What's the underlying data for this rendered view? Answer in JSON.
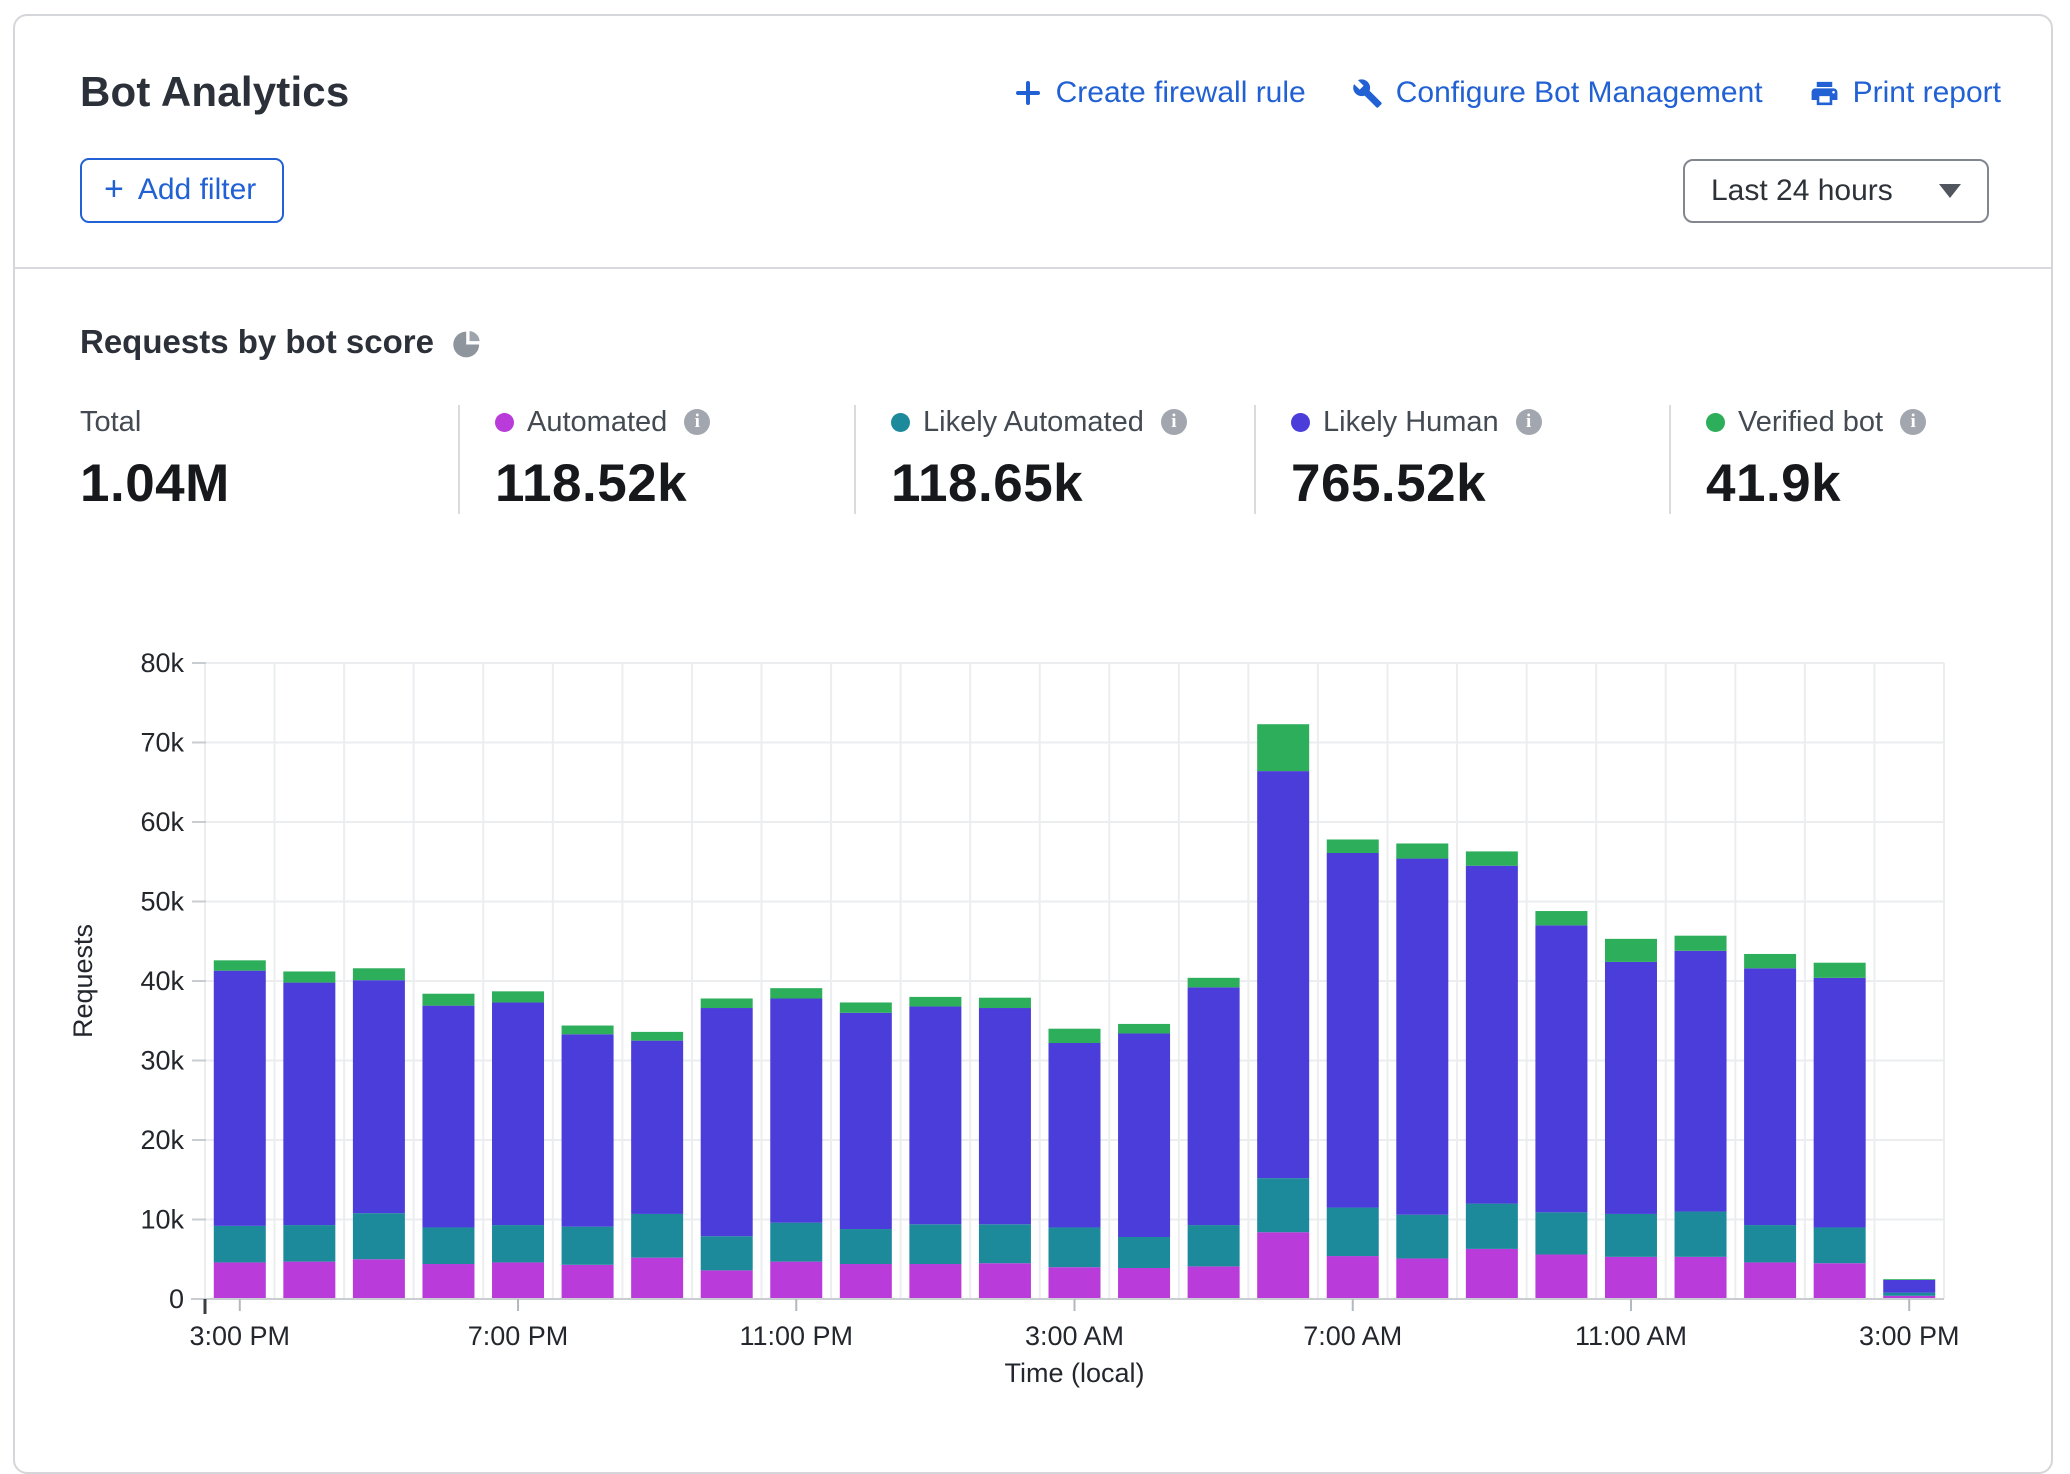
{
  "header": {
    "title": "Bot Analytics",
    "actions": [
      {
        "icon": "plus-icon",
        "label": "Create firewall rule"
      },
      {
        "icon": "wrench-icon",
        "label": "Configure Bot Management"
      },
      {
        "icon": "printer-icon",
        "label": "Print report"
      }
    ],
    "add_filter": {
      "plus": "+",
      "label": "Add filter"
    },
    "time_range_selected": "Last 24 hours"
  },
  "section": {
    "title": "Requests by bot score"
  },
  "icons": {
    "info_glyph": "i"
  },
  "stats": [
    {
      "label": "Total",
      "value": "1.04M",
      "color": null,
      "has_info": false
    },
    {
      "label": "Automated",
      "value": "118.52k",
      "color": "#b93cda",
      "has_info": true
    },
    {
      "label": "Likely Automated",
      "value": "118.65k",
      "color": "#1d8a9c",
      "has_info": true
    },
    {
      "label": "Likely Human",
      "value": "765.52k",
      "color": "#4a3dd9",
      "has_info": true
    },
    {
      "label": "Verified bot",
      "value": "41.9k",
      "color": "#2dae5b",
      "has_info": true
    }
  ],
  "chart_data": {
    "type": "bar",
    "stacked": true,
    "title": "Requests by bot score",
    "xlabel": "Time (local)",
    "ylabel": "Requests",
    "ylim": [
      0,
      80000
    ],
    "grid": true,
    "y_ticks": {
      "values": [
        0,
        10000,
        20000,
        30000,
        40000,
        50000,
        60000,
        70000,
        80000
      ],
      "labels": [
        "0",
        "10k",
        "20k",
        "30k",
        "40k",
        "50k",
        "60k",
        "70k",
        "80k"
      ]
    },
    "x": [
      "3:00 PM",
      "4:00 PM",
      "5:00 PM",
      "6:00 PM",
      "7:00 PM",
      "8:00 PM",
      "9:00 PM",
      "10:00 PM",
      "11:00 PM",
      "12:00 AM",
      "1:00 AM",
      "2:00 AM",
      "3:00 AM",
      "4:00 AM",
      "5:00 AM",
      "6:00 AM",
      "7:00 AM",
      "8:00 AM",
      "9:00 AM",
      "10:00 AM",
      "11:00 AM",
      "12:00 PM",
      "1:00 PM",
      "2:00 PM",
      "3:00 PM"
    ],
    "x_ticks": {
      "indices": [
        0,
        4,
        8,
        12,
        16,
        20,
        24
      ],
      "labels": [
        "3:00 PM",
        "7:00 PM",
        "11:00 PM",
        "3:00 AM",
        "7:00 AM",
        "11:00 AM",
        "3:00 PM"
      ]
    },
    "series": [
      {
        "name": "Automated",
        "color": "#b93cda",
        "values": [
          4600,
          4700,
          5000,
          4400,
          4600,
          4300,
          5200,
          3600,
          4700,
          4400,
          4400,
          4500,
          4000,
          3900,
          4100,
          8400,
          5400,
          5100,
          6300,
          5600,
          5300,
          5300,
          4600,
          4500,
          400
        ]
      },
      {
        "name": "Likely Automated",
        "color": "#1d8a9c",
        "values": [
          4600,
          4600,
          5800,
          4600,
          4700,
          4800,
          5500,
          4300,
          4900,
          4400,
          5000,
          4900,
          5000,
          3900,
          5200,
          6800,
          6100,
          5500,
          5700,
          5300,
          5400,
          5700,
          4700,
          4500,
          400
        ]
      },
      {
        "name": "Likely Human",
        "color": "#4a3dd9",
        "values": [
          32100,
          30500,
          29300,
          27900,
          28000,
          24200,
          21800,
          28700,
          28200,
          27200,
          27400,
          27200,
          23200,
          25600,
          29900,
          51200,
          44600,
          44800,
          42500,
          36100,
          31700,
          32800,
          32300,
          31400,
          1600
        ]
      },
      {
        "name": "Verified bot",
        "color": "#2dae5b",
        "values": [
          1300,
          1400,
          1500,
          1500,
          1400,
          1100,
          1100,
          1200,
          1300,
          1300,
          1200,
          1300,
          1800,
          1200,
          1200,
          5900,
          1700,
          1900,
          1800,
          1800,
          2900,
          1900,
          1800,
          1900,
          100
        ]
      }
    ],
    "totals_legend": {
      "total": "1.04M",
      "automated": "118.52k",
      "likely_automated": "118.65k",
      "likely_human": "765.52k",
      "verified_bot": "41.9k"
    }
  }
}
